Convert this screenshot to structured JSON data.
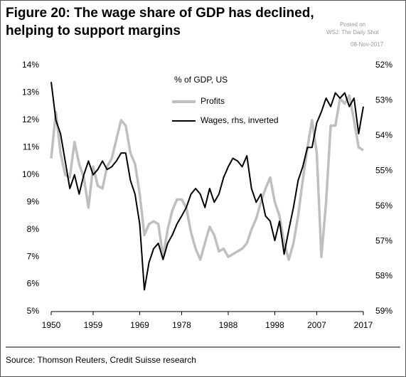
{
  "chart_data": {
    "type": "line",
    "title": "Figure 20: The wage share of GDP has declined,",
    "title_line2": "helping to support margins",
    "annotations": [
      "Posted on",
      "WSJ: The Daily Shot",
      "08-Nov-2017"
    ],
    "legend_title": "% of GDP, US",
    "source": "Source: Thomson Reuters, Credit Suisse research",
    "x": [
      1950,
      1951,
      1952,
      1953,
      1954,
      1955,
      1956,
      1957,
      1958,
      1959,
      1960,
      1961,
      1962,
      1963,
      1964,
      1965,
      1966,
      1967,
      1968,
      1969,
      1970,
      1971,
      1972,
      1973,
      1974,
      1975,
      1976,
      1977,
      1978,
      1979,
      1980,
      1981,
      1982,
      1983,
      1984,
      1985,
      1986,
      1987,
      1988,
      1989,
      1990,
      1991,
      1992,
      1993,
      1994,
      1995,
      1996,
      1997,
      1998,
      1999,
      2000,
      2001,
      2002,
      2003,
      2004,
      2005,
      2006,
      2007,
      2008,
      2009,
      2010,
      2011,
      2012,
      2013,
      2014,
      2015,
      2016,
      2017
    ],
    "series": [
      {
        "name": "Profits",
        "color": "#bfbfbf",
        "axis": "y",
        "values": [
          10.6,
          12.3,
          10.8,
          10.0,
          9.9,
          11.2,
          10.4,
          9.9,
          8.8,
          10.3,
          9.6,
          9.5,
          10.3,
          10.6,
          11.3,
          12.0,
          11.8,
          10.8,
          10.4,
          9.3,
          7.8,
          8.2,
          8.3,
          8.2,
          7.0,
          8.0,
          8.7,
          9.1,
          9.1,
          8.8,
          7.9,
          7.3,
          6.9,
          7.5,
          8.1,
          7.8,
          7.2,
          7.3,
          7.0,
          7.1,
          7.2,
          7.3,
          7.5,
          8.0,
          8.4,
          9.0,
          9.5,
          9.9,
          9.0,
          8.5,
          7.5,
          6.9,
          7.5,
          8.5,
          9.8,
          11.0,
          12.0,
          10.8,
          7.0,
          9.0,
          11.8,
          11.8,
          12.8,
          12.6,
          12.9,
          12.0,
          11.0,
          10.9
        ]
      },
      {
        "name": "Wages, rhs, inverted",
        "color": "#000000",
        "axis": "y2",
        "values": [
          52.47,
          53.56,
          53.94,
          54.72,
          55.5,
          55.11,
          55.66,
          55.11,
          54.72,
          55.11,
          54.96,
          54.72,
          54.96,
          54.88,
          54.72,
          54.49,
          54.49,
          55.27,
          55.66,
          56.51,
          58.38,
          57.6,
          57.21,
          57.06,
          57.52,
          57.06,
          56.82,
          56.51,
          56.28,
          56.04,
          55.66,
          55.5,
          55.66,
          56.04,
          55.5,
          55.89,
          55.66,
          55.19,
          54.88,
          54.64,
          54.72,
          54.88,
          54.57,
          55.5,
          55.89,
          55.66,
          56.28,
          56.43,
          56.98,
          56.43,
          57.37,
          56.67,
          56.04,
          55.27,
          54.88,
          54.33,
          54.33,
          53.63,
          53.32,
          52.93,
          53.17,
          52.78,
          52.93,
          52.78,
          53.17,
          52.93,
          53.94,
          53.17
        ]
      }
    ],
    "xlim": [
      1950,
      2017
    ],
    "xticks": [
      1950,
      1959,
      1969,
      1978,
      1988,
      1998,
      2007,
      2017
    ],
    "ylim": [
      5,
      14
    ],
    "yticks": [
      {
        "value": 5,
        "label": "5%"
      },
      {
        "value": 6,
        "label": "6%"
      },
      {
        "value": 7,
        "label": "7%"
      },
      {
        "value": 8,
        "label": "8%"
      },
      {
        "value": 9,
        "label": "9%"
      },
      {
        "value": 10,
        "label": "10%"
      },
      {
        "value": 11,
        "label": "11%"
      },
      {
        "value": 12,
        "label": "12%"
      },
      {
        "value": 13,
        "label": "13%"
      },
      {
        "value": 14,
        "label": "14%"
      }
    ],
    "y2lim": [
      59,
      52
    ],
    "y2ticks": [
      {
        "value": 52,
        "label": "52%"
      },
      {
        "value": 53,
        "label": "53%"
      },
      {
        "value": 54,
        "label": "54%"
      },
      {
        "value": 55,
        "label": "55%"
      },
      {
        "value": 56,
        "label": "56%"
      },
      {
        "value": 57,
        "label": "57%"
      },
      {
        "value": 58,
        "label": "58%"
      },
      {
        "value": 59,
        "label": "59%"
      }
    ]
  }
}
